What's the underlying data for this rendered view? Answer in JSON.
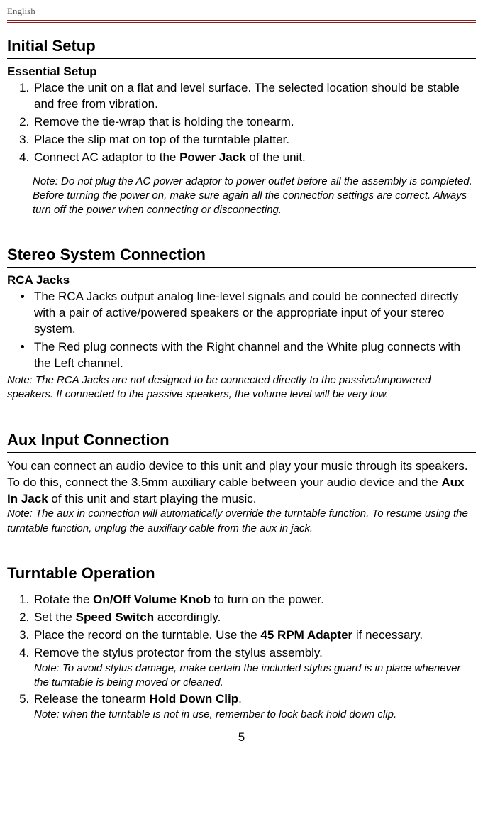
{
  "header": {
    "language": "English"
  },
  "page_number": "5",
  "sections": {
    "initial": {
      "title": "Initial Setup",
      "subheading": "Essential Setup",
      "steps": [
        "Place the unit on a flat and level surface. The selected location should be stable and free from vibration.",
        "Remove the tie-wrap that is holding the tonearm.",
        "Place the slip mat on top of the turntable platter.",
        "Connect AC adaptor to the ",
        " of the unit."
      ],
      "bold": {
        "power_jack": "Power Jack"
      },
      "note": "Note: Do not plug the AC power adaptor to power outlet before all the assembly is completed. Before turning the power on, make sure again all the connection settings are correct. Always turn off the power when connecting or disconnecting."
    },
    "stereo": {
      "title": "Stereo System Connection",
      "subheading": "RCA Jacks",
      "bullets": [
        "The RCA Jacks output analog line-level signals and could be connected directly with a pair of active/powered speakers or the appropriate input of your stereo system.",
        "The Red plug connects with the Right channel and the White plug connects with the Left channel."
      ],
      "note": "Note: The RCA Jacks are not designed to be connected directly to the passive/unpowered speakers. If connected to the passive speakers, the volume level will be very low."
    },
    "aux": {
      "title": "Aux Input Connection",
      "para_pre": "You can connect an audio device to this unit and play your music through its speakers. To do this, connect the 3.5mm auxiliary cable between your audio device and the ",
      "bold": {
        "aux_in_jack": "Aux In Jack"
      },
      "para_post": " of this unit and start playing the music.",
      "note": "Note: The aux in connection will automatically override the turntable function. To resume using the turntable function, unplug the auxiliary cable from the aux in jack."
    },
    "turntable": {
      "title": "Turntable Operation",
      "steps": {
        "s1_pre": "Rotate the ",
        "s1_bold": "On/Off Volume Knob",
        "s1_post": " to turn on the power.",
        "s2_pre": "Set the ",
        "s2_bold": "Speed Switch",
        "s2_post": " accordingly.",
        "s3_pre": "Place the record on the turntable. Use the ",
        "s3_bold": "45 RPM Adapter",
        "s3_post": " if necessary.",
        "s4": "Remove the stylus protector from the stylus assembly.",
        "s4_note": "Note: To avoid stylus damage, make certain the included stylus guard is in place whenever the turntable is being moved or cleaned.",
        "s5_pre": "Release the tonearm ",
        "s5_bold": "Hold Down Clip",
        "s5_post": ".",
        "s5_note": "Note: when the turntable is not in use, remember to lock back hold down clip."
      }
    }
  },
  "colors": {
    "rule": "#8b1a1a",
    "text_muted": "#595959",
    "text": "#000000",
    "background": "#ffffff"
  },
  "typography": {
    "body_size_pt": 13,
    "heading_size_pt": 17,
    "note_size_pt": 11
  }
}
